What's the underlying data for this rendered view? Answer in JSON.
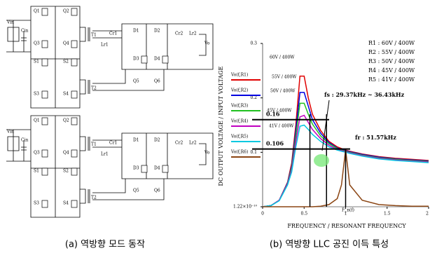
{
  "circuits": [
    {
      "labels": [
        "Vin",
        "Cin",
        "Q1",
        "Q2",
        "Q3",
        "Q4",
        "T1",
        "T2",
        "S1",
        "S2",
        "S3",
        "S4",
        "D1",
        "D2",
        "D3",
        "D4",
        "Q5",
        "Q6",
        "Lr1",
        "Cr1",
        "Lr2",
        "Cr2",
        "Vo"
      ]
    },
    {
      "labels": [
        "Vin",
        "Cin",
        "Q1",
        "Q2",
        "Q3",
        "Q4",
        "T1",
        "T2",
        "S1",
        "S2",
        "S3",
        "S4",
        "D1",
        "D2",
        "D3",
        "D4",
        "Q5",
        "Q6",
        "Lr1",
        "Cr1",
        "Lr2",
        "Cr2",
        "Vo"
      ]
    }
  ],
  "captions": [
    "(a) 역방향 모드 동작",
    "(b) 역방향 LLC 공진 이득 특성"
  ],
  "chart_data": {
    "type": "line",
    "xlabel": "FREQUENCY / RESONANT FREQUENCY",
    "ylabel": "DC OUTPUT VOLTAGE / INPUT VOLTAGE",
    "x_variable": "F_n(f)",
    "x": [
      0,
      0.1,
      0.2,
      0.3,
      0.35,
      0.4,
      0.45,
      0.5,
      0.55,
      0.6,
      0.7,
      0.8,
      0.9,
      0.95,
      1,
      1.05,
      1.2,
      1.4,
      1.6,
      1.8,
      2
    ],
    "xlim": [
      0,
      2
    ],
    "xticks": [
      0,
      0.5,
      1,
      1.5,
      2
    ],
    "ylim": [
      0,
      0.3
    ],
    "yticks": [
      {
        "value": 1.22e-10,
        "label": "1.22×10⁻¹⁰"
      },
      0.1,
      0.2,
      0.3
    ],
    "series": [
      {
        "name": "Vo(f,R1)",
        "color": "#e00000",
        "values": [
          0,
          0.002,
          0.012,
          0.045,
          0.08,
          0.15,
          0.24,
          0.24,
          0.2,
          0.17,
          0.14,
          0.12,
          0.11,
          0.107,
          0.104,
          0.102,
          0.097,
          0.092,
          0.089,
          0.087,
          0.085
        ]
      },
      {
        "name": "Vo(f,R2)",
        "color": "#0000e0",
        "values": [
          0,
          0.002,
          0.012,
          0.044,
          0.075,
          0.14,
          0.21,
          0.21,
          0.185,
          0.16,
          0.135,
          0.118,
          0.108,
          0.105,
          0.103,
          0.101,
          0.096,
          0.091,
          0.088,
          0.086,
          0.084
        ]
      },
      {
        "name": "Vo(f,R3)",
        "color": "#20c020",
        "values": [
          0,
          0.002,
          0.012,
          0.043,
          0.072,
          0.13,
          0.19,
          0.19,
          0.17,
          0.152,
          0.13,
          0.116,
          0.107,
          0.104,
          0.102,
          0.1,
          0.095,
          0.09,
          0.087,
          0.085,
          0.083
        ]
      },
      {
        "name": "Vo(f,R4)",
        "color": "#c000c0",
        "values": [
          0,
          0.002,
          0.012,
          0.042,
          0.068,
          0.12,
          0.165,
          0.168,
          0.155,
          0.142,
          0.125,
          0.113,
          0.105,
          0.103,
          0.101,
          0.099,
          0.094,
          0.089,
          0.086,
          0.084,
          0.082
        ]
      },
      {
        "name": "Vo(f,R5)",
        "color": "#00c8e0",
        "values": [
          0,
          0.002,
          0.011,
          0.04,
          0.064,
          0.11,
          0.148,
          0.15,
          0.142,
          0.133,
          0.12,
          0.11,
          0.104,
          0.102,
          0.1,
          0.098,
          0.093,
          0.088,
          0.085,
          0.083,
          0.081
        ]
      },
      {
        "name": "Vo(f,R6)",
        "color": "#8b4513",
        "values": [
          0,
          0,
          0,
          0,
          0,
          0,
          0,
          0,
          0,
          0,
          0.001,
          0.004,
          0.015,
          0.04,
          0.105,
          0.04,
          0.012,
          0.004,
          0.002,
          0.001,
          0.001
        ]
      }
    ],
    "curve_labels": [
      "60V / 400W",
      "55V / 400W",
      "50V / 400W",
      "45V / 400W",
      "41V / 400W"
    ],
    "load_box": [
      "R1 : 60V / 400W",
      "R2 : 55V / 400W",
      "R3 : 50V / 400W",
      "R4 : 45V / 400W",
      "R5 : 41V / 400W"
    ],
    "hlines": [
      0.16,
      0.106
    ],
    "fs_label": "fs : 29.37kHz ~ 36.43kHz",
    "fs_range": [
      0.57,
      0.77
    ],
    "fr_label": "fr : 51.57kHz",
    "fr_x": 1
  }
}
